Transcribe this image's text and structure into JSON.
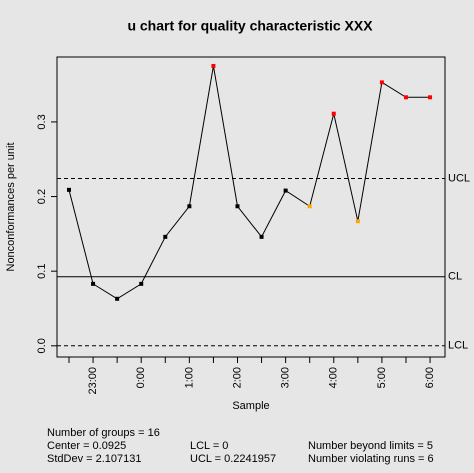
{
  "chart_data": {
    "type": "line",
    "title": "u chart for quality characteristic XXX",
    "x_label": "Sample",
    "y_label": "Nonconformances per unit",
    "categories": [
      null,
      "23:00",
      null,
      "0:00",
      null,
      "1:00",
      null,
      "2:00",
      null,
      "3:00",
      null,
      "4:00",
      null,
      "5:00",
      null,
      "6:00"
    ],
    "series": [
      {
        "color": "#000000",
        "values": [
          0.209,
          0.083,
          0.063,
          0.083,
          0.146,
          0.187,
          0.375,
          0.187,
          0.146,
          0.208,
          0.187,
          0.311,
          0.167,
          0.353,
          0.333,
          0.333
        ],
        "point_colors": [
          "#000000",
          "#000000",
          "#000000",
          "#000000",
          "#000000",
          "#000000",
          "#ff0000",
          "#000000",
          "#000000",
          "#000000",
          "#ffa500",
          "#ff0000",
          "#ffa500",
          "#ff0000",
          "#ff0000",
          "#ff0000"
        ]
      }
    ],
    "ylim": [
      -0.015,
      0.387
    ],
    "yticks": [
      {
        "value": 0,
        "label": "0.0"
      },
      0.1,
      0.2,
      0.3
    ],
    "limits": [
      {
        "name": "UCL",
        "value": 0.2241957,
        "dashed": true
      },
      {
        "name": "CL",
        "value": 0.0925,
        "dashed": false
      },
      {
        "name": "LCL",
        "value": 0,
        "dashed": true
      }
    ],
    "stats": [
      [
        "Number of groups = 16",
        "Center = 0.0925",
        "StdDev = 2.107131"
      ],
      [
        "LCL = 0",
        "UCL = 0.2241957"
      ],
      [
        "Number beyond limits = 5",
        "Number violating runs = 6"
      ]
    ]
  }
}
